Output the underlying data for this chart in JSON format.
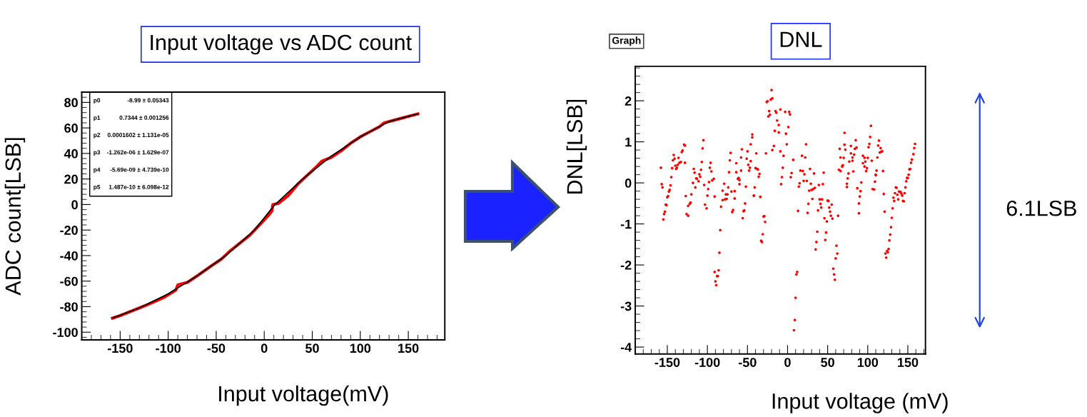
{
  "chart_data": [
    {
      "type": "line",
      "title": "Input voltage vs ADC count",
      "xlabel": "Input voltage(mV)",
      "ylabel": "ADC count[LSB]",
      "xlim": [
        -190,
        188
      ],
      "ylim": [
        -106,
        88
      ],
      "xticks": [
        -150,
        -100,
        -50,
        0,
        50,
        100,
        150
      ],
      "yticks": [
        -100,
        -80,
        -60,
        -40,
        -20,
        0,
        20,
        40,
        60,
        80
      ],
      "line_style": "solid",
      "series": [
        {
          "type": "line",
          "color": "#ff0000",
          "x": [
            -158,
            -150,
            -130,
            -120,
            -105,
            -92,
            -90,
            -80,
            -70,
            -55,
            -45,
            -35,
            -25,
            -15,
            -5,
            5,
            8,
            9,
            15,
            25,
            35,
            45,
            55,
            60,
            70,
            80,
            90,
            100,
            110,
            120,
            125,
            140,
            150,
            160
          ],
          "values": [
            -89,
            -87,
            -81,
            -78,
            -73,
            -67,
            -63,
            -61,
            -56,
            -48,
            -43,
            -36,
            -30,
            -24,
            -16,
            -8,
            -5,
            0,
            1,
            7,
            16,
            23,
            30,
            34,
            37,
            42,
            48,
            53,
            57,
            61,
            64,
            67,
            69,
            71
          ]
        },
        {
          "type": "line",
          "color": "#000000",
          "x": [
            -158,
            -130,
            -100,
            -70,
            -40,
            -10,
            10,
            40,
            70,
            100,
            130,
            160
          ],
          "values": [
            -89,
            -81,
            -70,
            -56,
            -40,
            -20,
            -1,
            20,
            38,
            53,
            65,
            71
          ]
        }
      ],
      "annotations": [
        "p0",
        "-8.99 ± 0.05343",
        "p1",
        "0.7344 ± 0.001256",
        "p2",
        "0.0001602 ± 1.131e-05",
        "p3",
        "-1.262e-06 ± 1.629e-07",
        "p4",
        "-5.69e-09 ± 4.739e-10",
        "p5",
        "1.487e-10 ± 6.098e-12"
      ]
    },
    {
      "type": "scatter",
      "title": "DNL",
      "xlabel": "Input voltage (mV)",
      "ylabel": "DNL[LSB]",
      "xlim": [
        -190,
        172
      ],
      "ylim": [
        -4.17,
        2.84
      ],
      "xticks": [
        -150,
        -100,
        -50,
        0,
        50,
        100,
        150
      ],
      "yticks": [
        -4,
        -3,
        -2,
        -1,
        0,
        1,
        2
      ],
      "marker": "circle",
      "series": [
        {
          "type": "scatter",
          "color": "#ff0000",
          "x": [
            -158,
            -157,
            -156,
            -155,
            -154,
            -153,
            -152,
            -151,
            -150,
            -149,
            -148,
            -147,
            -146,
            -145,
            -144,
            -143,
            -142,
            -141,
            -140,
            -139,
            -138,
            -137,
            -136,
            -135,
            -133,
            -132,
            -131,
            -129,
            -128,
            -128,
            -127,
            -126,
            -124,
            -124,
            -122,
            -121,
            -120,
            -118,
            -117,
            -116,
            -115,
            -114,
            -113,
            -111,
            -110,
            -109,
            -108,
            -107,
            -106,
            -105,
            -104,
            -103,
            -101,
            -100,
            -99,
            -98,
            -97,
            -96,
            -95,
            -94,
            -92,
            -91,
            -91,
            -90,
            -89,
            -88,
            -87,
            -86,
            -85,
            -84,
            -83,
            -81,
            -81,
            -79,
            -78,
            -77,
            -76,
            -75,
            -74,
            -73,
            -72,
            -71,
            -70,
            -69,
            -68,
            -66,
            -66,
            -64,
            -64,
            -62,
            -61,
            -60,
            -60,
            -58,
            -58,
            -57,
            -56,
            -55,
            -54,
            -53,
            -52,
            -51,
            -50,
            -49,
            -48,
            -47,
            -46,
            -46,
            -44,
            -44,
            -42,
            -42,
            -41,
            -40,
            -39,
            -38,
            -37,
            -36,
            -35,
            -34,
            -33,
            -32,
            -31,
            -30,
            -29,
            -28,
            -27,
            -26,
            -25,
            -24,
            -23,
            -22,
            -21,
            -20,
            -19,
            -19,
            -17,
            -16,
            -15,
            -14,
            -13,
            -11,
            -11,
            -9,
            -9,
            -8,
            -7,
            -6,
            -5,
            -3,
            -2,
            -1,
            1,
            2,
            3,
            4,
            5,
            7,
            8,
            9,
            10,
            11,
            12,
            13,
            14,
            15,
            16,
            18,
            19,
            20,
            21,
            22,
            23,
            24,
            25,
            26,
            27,
            28,
            29,
            30,
            31,
            32,
            33,
            34,
            35,
            36,
            37,
            38,
            39,
            40,
            41,
            42,
            43,
            44,
            45,
            46,
            47,
            48,
            49,
            50,
            51,
            52,
            53,
            54,
            55,
            56,
            57,
            58,
            59,
            60,
            61,
            62,
            63,
            64,
            65,
            66,
            66,
            68,
            69,
            70,
            71,
            71,
            72,
            74,
            74,
            75,
            76,
            77,
            79,
            79,
            81,
            81,
            82,
            83,
            84,
            85,
            86,
            87,
            89,
            89,
            90,
            91,
            92,
            94,
            94,
            96,
            96,
            97,
            98,
            99,
            100,
            101,
            102,
            103,
            104,
            105,
            106,
            108,
            109,
            110,
            110,
            111,
            112,
            113,
            114,
            115,
            116,
            117,
            118,
            119,
            120,
            121,
            122,
            123,
            124,
            125,
            126,
            127,
            128,
            129,
            130,
            131,
            132,
            133,
            134,
            135,
            136,
            137,
            138,
            139,
            140,
            141,
            142,
            143,
            144,
            145,
            146,
            147,
            148,
            149,
            150,
            151,
            152,
            153,
            154,
            155,
            157,
            158,
            159
          ],
          "values": [
            0.37,
            -0.03,
            -0.11,
            -0.89,
            -0.76,
            -0.7,
            -0.53,
            -0.54,
            -0.35,
            -0.32,
            -0.21,
            -0.17,
            -0.06,
            0.14,
            0.36,
            0.55,
            0.68,
            0.59,
            0.42,
            0.34,
            0.37,
            0.44,
            0.61,
            0.49,
            0.51,
            0.75,
            0.79,
            0.93,
            0.91,
            0.49,
            -0.32,
            -0.76,
            -0.8,
            -0.56,
            -0.51,
            -0.48,
            -0.28,
            0.0,
            0.34,
            0.25,
            -0.11,
            0.11,
            0.1,
            0.04,
            0.21,
            0.15,
            0.32,
            0.51,
            0.84,
            1.04,
            -0.05,
            -0.53,
            -0.62,
            -0.31,
            -0.15,
            0.02,
            0.37,
            0.49,
            0.28,
            0.06,
            0.1,
            -0.33,
            -2.17,
            -2.4,
            -2.49,
            -2.27,
            -2.27,
            -2.13,
            -1.7,
            -1.15,
            -0.58,
            -0.42,
            -0.19,
            -0.02,
            -0.4,
            -0.28,
            -0.39,
            -0.28,
            -0.11,
            0.26,
            0.55,
            0.73,
            -0.21,
            -0.71,
            -0.66,
            -0.38,
            -0.2,
            0.26,
            0.48,
            0.1,
            0.12,
            -0.03,
            0.07,
            0.3,
            0.62,
            0.82,
            -0.86,
            -0.69,
            -0.67,
            -0.5,
            -0.09,
            0.59,
            0.77,
            0.44,
            0.3,
            0.37,
            0.53,
            0.94,
            1.18,
            1.11,
            -0.31,
            -0.31,
            -0.11,
            0.36,
            0.72,
            0.34,
            0.33,
            0.15,
            0.22,
            -0.34,
            -1.41,
            -1.44,
            -1.25,
            -0.82,
            -0.81,
            -0.95,
            0.72,
            1.97,
            1.99,
            1.62,
            1.75,
            1.66,
            2.03,
            2.26,
            2.06,
            0.8,
            0.9,
            1.27,
            1.75,
            1.71,
            1.52,
            1.23,
            1.41,
            1.79,
            0.77,
            -0.03,
            0.14,
            0.37,
            0.66,
            1.73,
            1.2,
            0.94,
            1.36,
            1.73,
            1.67,
            0.14,
            0.24,
            0.56,
            -3.59,
            -3.34,
            -2.8,
            -2.23,
            -2.17,
            -0.68,
            -0.09,
            -0.01,
            0.3,
            0.66,
            0.29,
            0.05,
            0.21,
            0.62,
            0.94,
            0.05,
            -0.73,
            -0.51,
            -0.19,
            0.34,
            -0.02,
            -0.17,
            -0.39,
            -0.15,
            0.23,
            -0.12,
            -1.62,
            -1.44,
            -1.19,
            -0.67,
            -0.05,
            -0.4,
            -0.51,
            -0.6,
            -0.4,
            -0.03,
            0.25,
            -0.86,
            -1.39,
            -1.21,
            -0.94,
            -0.43,
            -0.44,
            -0.6,
            -0.7,
            -0.8,
            -0.53,
            -0.87,
            -2.09,
            -2.23,
            -2.36,
            -1.84,
            -1.53,
            -1.72,
            -0.8,
            0.32,
            0.83,
            0.62,
            0.29,
            0.4,
            0.43,
            0.61,
            0.93,
            1.22,
            0.81,
            -0.02,
            -0.1,
            0.11,
            0.23,
            0.52,
            0.9,
            0.72,
            0.62,
            0.54,
            0.28,
            0.69,
            0.83,
            1.04,
            0.86,
            -0.13,
            -0.74,
            -0.5,
            -0.33,
            -0.2,
            0.01,
            0.48,
            0.66,
            0.61,
            0.4,
            0.52,
            0.29,
            0.36,
            0.61,
            0.87,
            0.95,
            1.12,
            1.39,
            0.54,
            -0.15,
            -0.16,
            0.03,
            0.19,
            0.2,
            0.3,
            0.62,
            0.91,
            1.03,
            0.74,
            0.85,
            0.76,
            0.77,
            0.29,
            -0.27,
            -0.7,
            -1.72,
            -1.82,
            -1.66,
            -1.69,
            -1.61,
            -1.4,
            -1.26,
            -1.08,
            -0.85,
            -0.62,
            -0.36,
            -0.44,
            -0.25,
            -0.11,
            -0.12,
            -0.29,
            -0.4,
            -0.21,
            -0.22,
            -0.22,
            -0.26,
            -0.31,
            -0.44,
            -0.45,
            -0.25,
            -0.11,
            0.04,
            0.12,
            0.12,
            0.2,
            0.33,
            0.34,
            0.49,
            0.57,
            0.7,
            0.85,
            0.95
          ]
        }
      ],
      "annotations": [
        "Graph",
        "6.1LSB"
      ]
    }
  ]
}
